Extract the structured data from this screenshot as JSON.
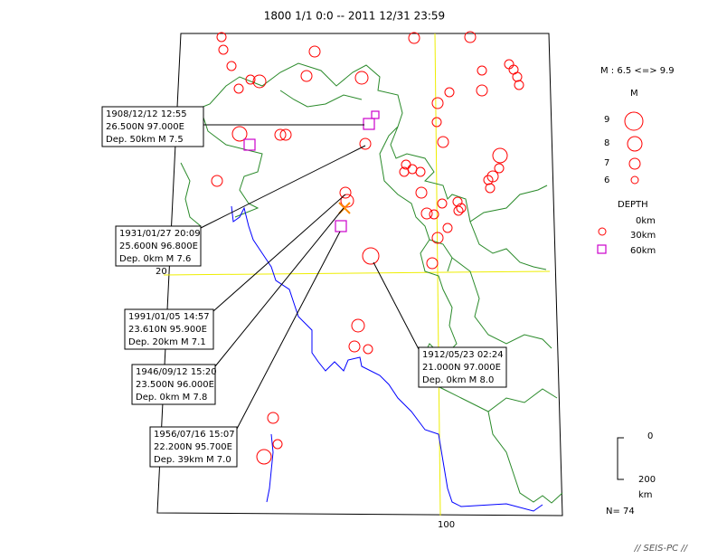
{
  "title": "1800 1/1 0:0 -- 2011 12/31 23:59",
  "map_labels": {
    "latitude": "20",
    "longitude": "100"
  },
  "annotations": [
    {
      "lines": [
        "1908/12/12 12:55",
        "26.500N  97.000E",
        "Dep. 50km   M 7.5"
      ]
    },
    {
      "lines": [
        "1931/01/27 20:09",
        "25.600N  96.800E",
        "Dep. 0km   M 7.6"
      ]
    },
    {
      "lines": [
        "1991/01/05 14:57",
        "23.610N  95.900E",
        "Dep. 20km   M 7.1"
      ]
    },
    {
      "lines": [
        "1946/09/12 15:20",
        "23.500N  96.000E",
        "Dep. 0km   M 7.8"
      ]
    },
    {
      "lines": [
        "1956/07/16 15:07",
        "22.200N  95.700E",
        "Dep. 39km   M 7.0"
      ]
    },
    {
      "lines": [
        "1912/05/23 02:24",
        "21.000N  97.000E",
        "Dep. 0km   M 8.0"
      ]
    }
  ],
  "legend": {
    "range": "M : 6.5 <=> 9.9",
    "magnitude_title": "M",
    "magnitudes": [
      "9",
      "8",
      "7",
      "6"
    ],
    "depth_title": "DEPTH",
    "depths": [
      "0km",
      "30km",
      "60km"
    ],
    "scale_top": "0",
    "scale_bottom": "200",
    "scale_unit": "km",
    "count": "N= 74"
  },
  "footer": "// SEIS-PC //"
}
